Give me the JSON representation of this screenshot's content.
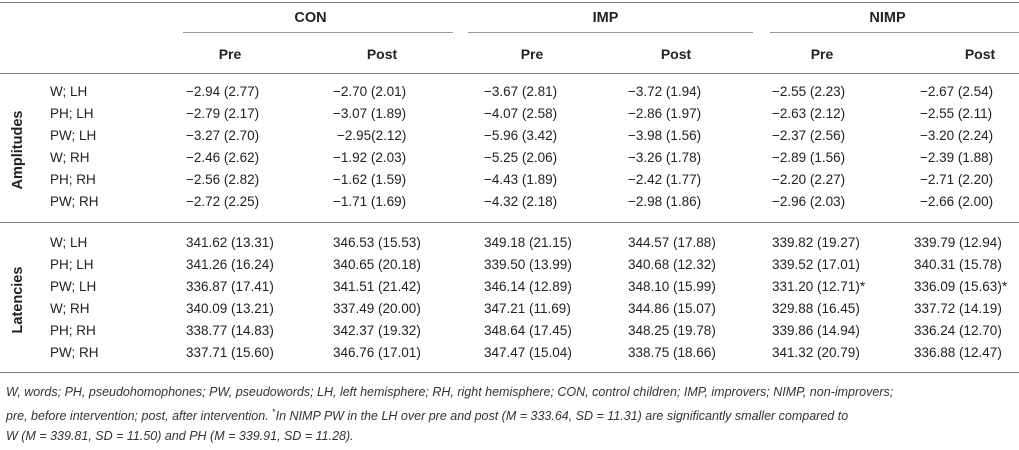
{
  "groups": [
    {
      "name": "CON",
      "sub": [
        "Pre",
        "Post"
      ]
    },
    {
      "name": "IMP",
      "sub": [
        "Pre",
        "Post"
      ]
    },
    {
      "name": "NIMP",
      "sub": [
        "Pre",
        "Post"
      ]
    }
  ],
  "sections": [
    {
      "label": "Amplitudes",
      "rows": [
        {
          "label": "W; LH",
          "values": [
            "−2.94 (2.77)",
            "−2.70 (2.01)",
            "−3.67 (2.81)",
            "−3.72 (1.94)",
            "−2.55 (2.23)",
            "−2.67 (2.54)"
          ]
        },
        {
          "label": "PH; LH",
          "values": [
            "−2.79 (2.17)",
            "−3.07 (1.89)",
            "−4.07 (2.58)",
            "−2.86 (1.97)",
            "−2.63 (2.12)",
            "−2.55 (2.11)"
          ]
        },
        {
          "label": "PW; LH",
          "values": [
            "−3.27 (2.70)",
            "−2.95(2.12)",
            "−5.96 (3.42)",
            "−3.98 (1.56)",
            "−2.37 (2.56)",
            "−3.20 (2.24)"
          ]
        },
        {
          "label": "W; RH",
          "values": [
            "−2.46 (2.62)",
            "−1.92 (2.03)",
            "−5.25 (2.06)",
            "−3.26 (1.78)",
            "−2.89 (1.56)",
            "−2.39 (1.88)"
          ]
        },
        {
          "label": "PH; RH",
          "values": [
            "−2.56 (2.82)",
            "−1.62 (1.59)",
            "−4.43 (1.89)",
            "−2.42 (1.77)",
            "−2.20 (2.27)",
            "−2.71 (2.20)"
          ]
        },
        {
          "label": "PW; RH",
          "values": [
            "−2.72 (2.25)",
            "−1.71 (1.69)",
            "−4.32 (2.18)",
            "−2.98 (1.86)",
            "−2.96 (2.03)",
            "−2.66 (2.00)"
          ]
        }
      ]
    },
    {
      "label": "Latencies",
      "rows": [
        {
          "label": "W; LH",
          "values": [
            "341.62 (13.31)",
            "346.53 (15.53)",
            "349.18 (21.15)",
            "344.57 (17.88)",
            "339.82 (19.27)",
            "339.79 (12.94)"
          ]
        },
        {
          "label": "PH; LH",
          "values": [
            "341.26 (16.24)",
            "340.65 (20.18)",
            "339.50 (13.99)",
            "340.68 (12.32)",
            "339.52 (17.01)",
            "340.31 (15.78)"
          ]
        },
        {
          "label": "PW; LH",
          "values": [
            "336.87 (17.41)",
            "341.51 (21.42)",
            "346.14 (12.89)",
            "348.10 (15.99)",
            "331.20 (12.71)*",
            "336.09 (15.63)*"
          ]
        },
        {
          "label": "W; RH",
          "values": [
            "340.09 (13.21)",
            "337.49 (20.00)",
            "347.21 (11.69)",
            "344.86 (15.07)",
            "329.88 (16.45)",
            "337.72 (14.19)"
          ]
        },
        {
          "label": "PH; RH",
          "values": [
            "338.77 (14.83)",
            "342.37 (19.32)",
            "348.64 (17.45)",
            "348.25 (19.78)",
            "339.86 (14.94)",
            "336.24 (12.70)"
          ]
        },
        {
          "label": "PW; RH",
          "values": [
            "337.71 (15.60)",
            "346.76 (17.01)",
            "347.47 (15.04)",
            "338.75 (18.66)",
            "341.32 (20.79)",
            "336.88 (12.47)"
          ]
        }
      ]
    }
  ],
  "footnote": {
    "line1": "W, words; PH, pseudohomophones; PW, pseudowords; LH, left hemisphere; RH, right hemisphere; CON, control children; IMP, improvers; NIMP, non-improvers;",
    "line2_pre": "pre, before intervention; post, after intervention. ",
    "line2_mark": "*",
    "line2_post": "In NIMP PW in the LH over pre and post (M = 333.64, SD = 11.31) are significantly smaller compared to",
    "line3": "W (M = 339.81, SD = 11.50) and PH (M = 339.91, SD = 11.28)."
  }
}
